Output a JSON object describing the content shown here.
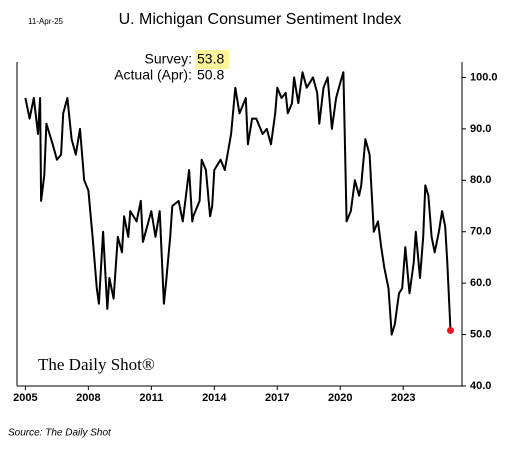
{
  "chart_data": {
    "type": "line",
    "title": "U. Michigan Consumer Sentiment Index",
    "date_note": "11-Apr-25",
    "annotations": {
      "survey_label": "Survey:",
      "survey_value": "53.8",
      "actual_label": "Actual (Apr):",
      "actual_value": "50.8"
    },
    "brand": "The Daily Shot®",
    "source": "Source: The Daily Shot",
    "x": [
      2005.0,
      2005.2,
      2005.4,
      2005.6,
      2005.7,
      2005.75,
      2005.9,
      2006.0,
      2006.3,
      2006.5,
      2006.7,
      2006.8,
      2007.0,
      2007.2,
      2007.4,
      2007.6,
      2007.8,
      2008.0,
      2008.2,
      2008.4,
      2008.5,
      2008.7,
      2008.9,
      2009.0,
      2009.2,
      2009.4,
      2009.6,
      2009.7,
      2009.9,
      2010.0,
      2010.3,
      2010.5,
      2010.6,
      2010.8,
      2011.0,
      2011.2,
      2011.4,
      2011.6,
      2011.7,
      2011.9,
      2012.0,
      2012.3,
      2012.5,
      2012.8,
      2012.95,
      2013.0,
      2013.3,
      2013.4,
      2013.6,
      2013.8,
      2013.9,
      2014.0,
      2014.3,
      2014.5,
      2014.8,
      2015.0,
      2015.2,
      2015.5,
      2015.6,
      2015.8,
      2016.0,
      2016.3,
      2016.5,
      2016.7,
      2016.9,
      2017.0,
      2017.2,
      2017.4,
      2017.5,
      2017.7,
      2017.8,
      2018.0,
      2018.2,
      2018.4,
      2018.7,
      2018.9,
      2019.0,
      2019.2,
      2019.4,
      2019.6,
      2019.8,
      2020.0,
      2020.15,
      2020.3,
      2020.5,
      2020.7,
      2020.9,
      2021.0,
      2021.2,
      2021.4,
      2021.6,
      2021.8,
      2021.95,
      2022.1,
      2022.3,
      2022.45,
      2022.6,
      2022.8,
      2022.95,
      2023.1,
      2023.3,
      2023.5,
      2023.6,
      2023.8,
      2023.95,
      2024.05,
      2024.2,
      2024.35,
      2024.5,
      2024.7,
      2024.85,
      2025.0,
      2025.1,
      2025.25
    ],
    "values": [
      96,
      92,
      96,
      89,
      96,
      76,
      81,
      91,
      87,
      84,
      85,
      93,
      96,
      88,
      85,
      90,
      80,
      78,
      69,
      59,
      56,
      70,
      55,
      61,
      57,
      69,
      66,
      73,
      69,
      74,
      72,
      76,
      68,
      71,
      74,
      69,
      74,
      56,
      60,
      69,
      75,
      76,
      72,
      82,
      72,
      73,
      76,
      84,
      82,
      73,
      75,
      82,
      84,
      82,
      89,
      98,
      93,
      96,
      87,
      92,
      92,
      89,
      90,
      87,
      93,
      98,
      96,
      97,
      93,
      95,
      100,
      95,
      101,
      98,
      100,
      97,
      91,
      98,
      100,
      90,
      96,
      99,
      101,
      72,
      74,
      80,
      77,
      79,
      88,
      85,
      70,
      72,
      67,
      63,
      59,
      50,
      52,
      58,
      59,
      67,
      58,
      64,
      70,
      61,
      69,
      79,
      77,
      69,
      66,
      70,
      74,
      71,
      64,
      50.8
    ],
    "color": "#000000",
    "last_point_color": "#e8141e",
    "xlim": [
      2004.6,
      2025.8
    ],
    "xticks": [
      2005,
      2008,
      2011,
      2014,
      2017,
      2020,
      2023
    ],
    "ylim": [
      40,
      103
    ],
    "yticks": [
      {
        "value": 40,
        "label": "40.0"
      },
      {
        "value": 50,
        "label": "50.0"
      },
      {
        "value": 60,
        "label": "60.0"
      },
      {
        "value": 70,
        "label": "70.0"
      },
      {
        "value": 80,
        "label": "80.0"
      },
      {
        "value": 90,
        "label": "90.0"
      },
      {
        "value": 100,
        "label": "100.0"
      }
    ],
    "grid": false
  }
}
